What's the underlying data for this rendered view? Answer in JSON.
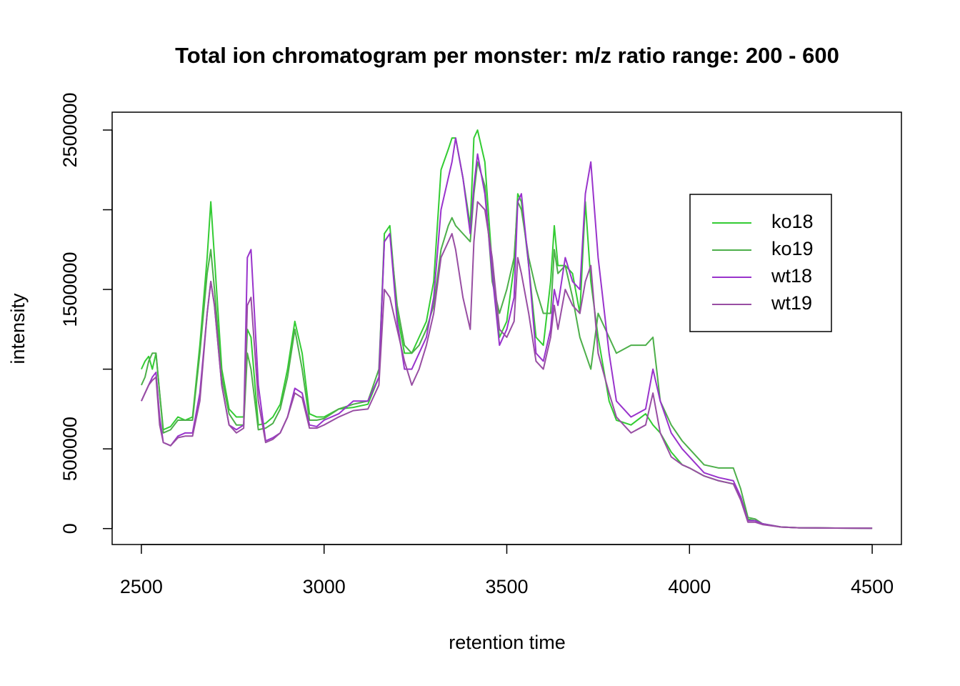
{
  "chart_data": {
    "type": "line",
    "title": "Total ion chromatogram per monster: m/z ratio range: 200 - 600",
    "xlabel": "retention time",
    "ylabel": "intensity",
    "x": [
      2500,
      2510,
      2520,
      2530,
      2540,
      2550,
      2560,
      2580,
      2600,
      2620,
      2640,
      2660,
      2680,
      2690,
      2700,
      2720,
      2740,
      2760,
      2780,
      2790,
      2800,
      2820,
      2840,
      2860,
      2880,
      2900,
      2920,
      2940,
      2960,
      2980,
      3000,
      3040,
      3080,
      3120,
      3150,
      3165,
      3180,
      3200,
      3220,
      3240,
      3260,
      3280,
      3300,
      3320,
      3340,
      3350,
      3360,
      3380,
      3400,
      3410,
      3420,
      3440,
      3460,
      3480,
      3500,
      3520,
      3530,
      3540,
      3560,
      3580,
      3600,
      3620,
      3630,
      3640,
      3660,
      3680,
      3700,
      3715,
      3730,
      3750,
      3780,
      3800,
      3840,
      3880,
      3900,
      3920,
      3950,
      3980,
      4000,
      4040,
      4080,
      4120,
      4140,
      4160,
      4180,
      4200,
      4250,
      4300,
      4400,
      4500
    ],
    "series": [
      {
        "name": "ko18",
        "color": "#33cc33",
        "values": [
          1000000,
          1050000,
          1080000,
          1000000,
          1100000,
          850000,
          620000,
          640000,
          700000,
          680000,
          700000,
          1150000,
          1700000,
          2050000,
          1700000,
          1000000,
          750000,
          700000,
          700000,
          1250000,
          1200000,
          650000,
          660000,
          700000,
          780000,
          1000000,
          1300000,
          1100000,
          720000,
          700000,
          700000,
          750000,
          760000,
          780000,
          950000,
          1850000,
          1900000,
          1350000,
          1100000,
          1100000,
          1200000,
          1300000,
          1550000,
          2250000,
          2380000,
          2450000,
          2450000,
          2200000,
          1900000,
          2450000,
          2500000,
          2300000,
          1650000,
          1200000,
          1300000,
          1650000,
          2100000,
          2050000,
          1650000,
          1200000,
          1150000,
          1550000,
          1900000,
          1650000,
          1650000,
          1600000,
          1350000,
          2050000,
          1550000,
          1200000,
          800000,
          680000,
          650000,
          720000,
          650000,
          600000,
          480000,
          400000,
          380000,
          330000,
          300000,
          280000,
          200000,
          60000,
          50000,
          30000,
          10000,
          5000,
          3000,
          2000
        ]
      },
      {
        "name": "ko19",
        "color": "#4daf4a",
        "values": [
          900000,
          950000,
          1050000,
          1100000,
          1100000,
          850000,
          600000,
          620000,
          680000,
          680000,
          680000,
          1100000,
          1600000,
          1750000,
          1500000,
          950000,
          720000,
          650000,
          650000,
          1100000,
          1000000,
          620000,
          630000,
          660000,
          750000,
          950000,
          1250000,
          1000000,
          680000,
          680000,
          690000,
          750000,
          780000,
          800000,
          1000000,
          1800000,
          1850000,
          1400000,
          1150000,
          1100000,
          1150000,
          1250000,
          1400000,
          1750000,
          1900000,
          1950000,
          1900000,
          1850000,
          1800000,
          2100000,
          2300000,
          2150000,
          1550000,
          1350000,
          1500000,
          1700000,
          2050000,
          2000000,
          1700000,
          1500000,
          1350000,
          1350000,
          1750000,
          1600000,
          1650000,
          1450000,
          1200000,
          1100000,
          1000000,
          1350000,
          1200000,
          1100000,
          1150000,
          1150000,
          1200000,
          800000,
          650000,
          550000,
          500000,
          400000,
          380000,
          380000,
          250000,
          70000,
          60000,
          30000,
          10000,
          5000,
          3000,
          2000
        ]
      },
      {
        "name": "wt18",
        "color": "#9933cc",
        "values": [
          800000,
          850000,
          900000,
          950000,
          980000,
          700000,
          540000,
          520000,
          580000,
          600000,
          600000,
          850000,
          1350000,
          1550000,
          1400000,
          900000,
          650000,
          620000,
          650000,
          1700000,
          1750000,
          900000,
          550000,
          570000,
          600000,
          700000,
          880000,
          850000,
          650000,
          640000,
          680000,
          720000,
          800000,
          800000,
          950000,
          1800000,
          1850000,
          1300000,
          1000000,
          1000000,
          1100000,
          1200000,
          1450000,
          2000000,
          2200000,
          2300000,
          2450000,
          2200000,
          1850000,
          2150000,
          2350000,
          2100000,
          1600000,
          1150000,
          1250000,
          1450000,
          2050000,
          2100000,
          1650000,
          1100000,
          1050000,
          1250000,
          1500000,
          1400000,
          1700000,
          1550000,
          1500000,
          2100000,
          2300000,
          1700000,
          1100000,
          800000,
          700000,
          750000,
          1000000,
          800000,
          600000,
          500000,
          450000,
          350000,
          320000,
          300000,
          200000,
          50000,
          50000,
          30000,
          10000,
          5000,
          3000,
          2000
        ]
      },
      {
        "name": "wt19",
        "color": "#984ea3",
        "values": [
          800000,
          850000,
          900000,
          930000,
          950000,
          650000,
          540000,
          520000,
          570000,
          580000,
          580000,
          800000,
          1350000,
          1550000,
          1400000,
          900000,
          650000,
          600000,
          630000,
          1400000,
          1450000,
          800000,
          540000,
          560000,
          600000,
          700000,
          850000,
          820000,
          630000,
          630000,
          650000,
          700000,
          740000,
          750000,
          900000,
          1500000,
          1450000,
          1250000,
          1050000,
          900000,
          1000000,
          1150000,
          1350000,
          1700000,
          1800000,
          1850000,
          1750000,
          1450000,
          1250000,
          1800000,
          2050000,
          2000000,
          1700000,
          1250000,
          1200000,
          1300000,
          1700000,
          1600000,
          1350000,
          1050000,
          1000000,
          1200000,
          1400000,
          1250000,
          1500000,
          1400000,
          1350000,
          1550000,
          1650000,
          1100000,
          850000,
          700000,
          600000,
          650000,
          850000,
          600000,
          450000,
          400000,
          380000,
          330000,
          300000,
          280000,
          180000,
          40000,
          40000,
          25000,
          10000,
          5000,
          3000,
          2000
        ]
      }
    ],
    "xlim": [
      2420,
      4580
    ],
    "ylim": [
      -100000,
      2612000
    ],
    "xticks": [
      2500,
      3000,
      3500,
      4000,
      4500
    ],
    "yticks": [
      0,
      500000,
      {
        "value": 1000000,
        "label": null
      },
      1500000,
      {
        "value": 2000000,
        "label": null
      },
      2500000
    ],
    "legend": "right"
  }
}
